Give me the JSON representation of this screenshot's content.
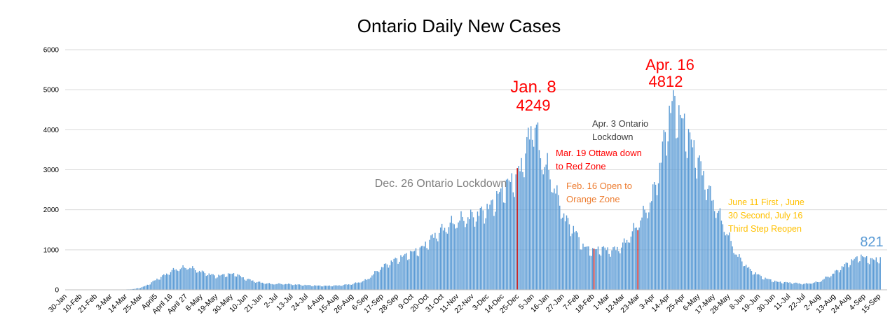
{
  "chart_data": {
    "type": "bar",
    "title": "Ontario Daily New Cases",
    "xlabel": "",
    "ylabel": "",
    "ylim": [
      0,
      6000
    ],
    "y_ticks": [
      0,
      1000,
      2000,
      3000,
      4000,
      5000,
      6000
    ],
    "grid": true,
    "legend": "none",
    "bar_color": "#5b9bd5",
    "highlight_color": "#c00000",
    "x_tick_labels": [
      "30-Jan",
      "10-Feb",
      "21-Feb",
      "3-Mar",
      "14-Mar",
      "25-Mar",
      "April5",
      "April 16",
      "April 27",
      "8-May",
      "19-May",
      "30-May",
      "10-Jun",
      "21-Jun",
      "2-Jul",
      "13-Jul",
      "24-Jul",
      "4-Aug",
      "15-Aug",
      "26-Aug",
      "6-Sep",
      "17-Sep",
      "28-Sep",
      "9-Oct",
      "20-Oct",
      "31-Oct",
      "11-Nov",
      "22-Nov",
      "3-Dec",
      "14-Dec",
      "25-Dec",
      "5-Jan",
      "16-Jan",
      "27-Jan",
      "7-Feb",
      "18-Feb",
      "1-Mar",
      "12-Mar",
      "23-Mar",
      "3-Apr",
      "14-Apr",
      "25-Apr",
      "6-May",
      "17-May",
      "28-May",
      "8-Jun",
      "19-Jun",
      "30-Jun",
      "11-Jul",
      "22-Jul",
      "2-Aug",
      "13-Aug",
      "24-Aug",
      "4-Sep",
      "15-Sep"
    ],
    "x_tick_day_index": [
      0,
      11,
      22,
      33,
      44,
      55,
      66,
      77,
      88,
      99,
      110,
      121,
      132,
      143,
      154,
      165,
      176,
      187,
      198,
      209,
      220,
      231,
      242,
      253,
      264,
      275,
      286,
      297,
      308,
      319,
      330,
      341,
      352,
      363,
      374,
      385,
      396,
      407,
      418,
      429,
      440,
      451,
      462,
      473,
      484,
      495,
      506,
      517,
      528,
      539,
      550,
      561,
      572,
      583,
      594
    ],
    "series_knots_day_index": [
      0,
      40,
      50,
      55,
      60,
      66,
      80,
      90,
      100,
      110,
      120,
      125,
      130,
      140,
      150,
      160,
      170,
      180,
      190,
      200,
      210,
      220,
      230,
      240,
      250,
      260,
      270,
      280,
      290,
      300,
      310,
      320,
      330,
      336,
      340,
      343,
      347,
      352,
      358,
      365,
      372,
      378,
      385,
      392,
      399,
      406,
      413,
      420,
      427,
      434,
      437,
      441,
      444,
      448,
      452,
      456,
      460,
      465,
      470,
      480,
      490,
      500,
      510,
      520,
      530,
      540,
      550,
      560,
      570,
      575,
      580,
      585,
      590,
      595
    ],
    "series_knots_values": [
      0,
      0,
      20,
      50,
      120,
      250,
      520,
      580,
      450,
      350,
      400,
      400,
      300,
      200,
      150,
      150,
      130,
      110,
      100,
      110,
      150,
      250,
      550,
      750,
      900,
      1050,
      1400,
      1650,
      1800,
      1900,
      2100,
      2600,
      2900,
      3500,
      4100,
      4249,
      3400,
      3100,
      2500,
      1800,
      1500,
      1100,
      1000,
      1050,
      1000,
      1100,
      1400,
      1800,
      2200,
      3100,
      3800,
      4400,
      4812,
      4400,
      4200,
      3800,
      3500,
      3000,
      2500,
      1700,
      900,
      500,
      300,
      200,
      180,
      150,
      200,
      400,
      650,
      750,
      850,
      800,
      750,
      821
    ],
    "highlight_day_index": [
      330,
      386,
      418
    ],
    "annotations": [
      {
        "text": "Jan. 8",
        "color": "#ff0000"
      },
      {
        "text": "4249",
        "color": "#ff0000"
      },
      {
        "text": "Apr. 16",
        "color": "#ff0000"
      },
      {
        "text": "4812",
        "color": "#ff0000"
      },
      {
        "text": "Dec. 26 Ontario Lockdown",
        "color": "#7f7f7f"
      },
      {
        "text": "Apr. 3 Ontario",
        "color": "#404040"
      },
      {
        "text": "Lockdown",
        "color": "#404040"
      },
      {
        "text": "Mar. 19 Ottawa down",
        "color": "#ff0000"
      },
      {
        "text": "to Red Zone",
        "color": "#ff0000"
      },
      {
        "text": "Feb. 16 Open to",
        "color": "#ed7d31"
      },
      {
        "text": "Orange Zone",
        "color": "#ed7d31"
      },
      {
        "text": "June 11 First , June",
        "color": "#ffc000"
      },
      {
        "text": "30 Second, July 16",
        "color": "#ffc000"
      },
      {
        "text": "Third Step Reopen",
        "color": "#ffc000"
      },
      {
        "text": "821",
        "color": "#5b9bd5"
      }
    ]
  }
}
